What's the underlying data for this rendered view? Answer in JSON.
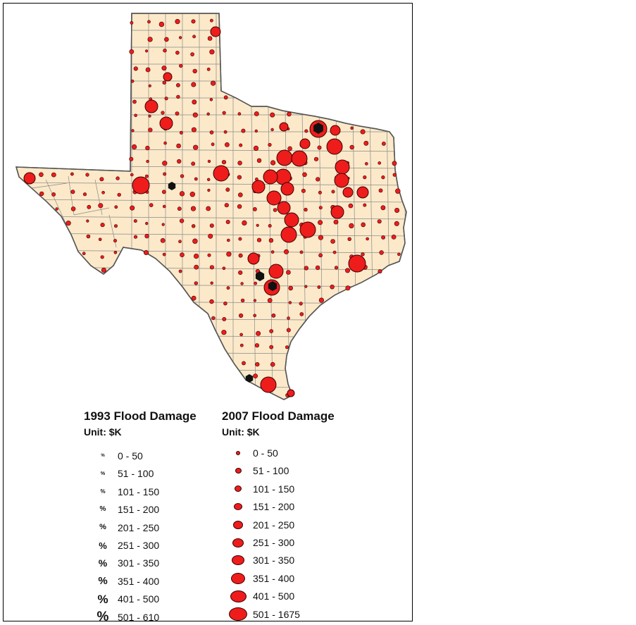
{
  "map": {
    "region": "Texas",
    "colors": {
      "land": "#fbe9c9",
      "county_border": "#8a8a8a",
      "state_border": "#555555",
      "damage_2007": "#ef1c1c",
      "damage_1993": "#111111",
      "background": "#ffffff"
    }
  },
  "legend_1993": {
    "title": "1993 Flood Damage",
    "unit": "Unit: $K",
    "symbol_glyph": "%",
    "symbol_color": "#111111",
    "classes": [
      {
        "label": "0 - 50"
      },
      {
        "label": "51 - 100"
      },
      {
        "label": "101 - 150"
      },
      {
        "label": "151 - 200"
      },
      {
        "label": "201 - 250"
      },
      {
        "label": "251 - 300"
      },
      {
        "label": "301 - 350"
      },
      {
        "label": "351 - 400"
      },
      {
        "label": "401 - 500"
      },
      {
        "label": "501 - 610"
      }
    ]
  },
  "legend_2007": {
    "title": "2007 Flood Damage",
    "unit": "Unit: $K",
    "symbol_color": "#ef1c1c",
    "classes": [
      {
        "label": "0 - 50"
      },
      {
        "label": "51 - 100"
      },
      {
        "label": "101 - 150"
      },
      {
        "label": "151 - 200"
      },
      {
        "label": "201 - 250"
      },
      {
        "label": "251 - 300"
      },
      {
        "label": "301 - 350"
      },
      {
        "label": "351 - 400"
      },
      {
        "label": "401 - 500"
      },
      {
        "label": "501 - 1675"
      }
    ]
  }
}
